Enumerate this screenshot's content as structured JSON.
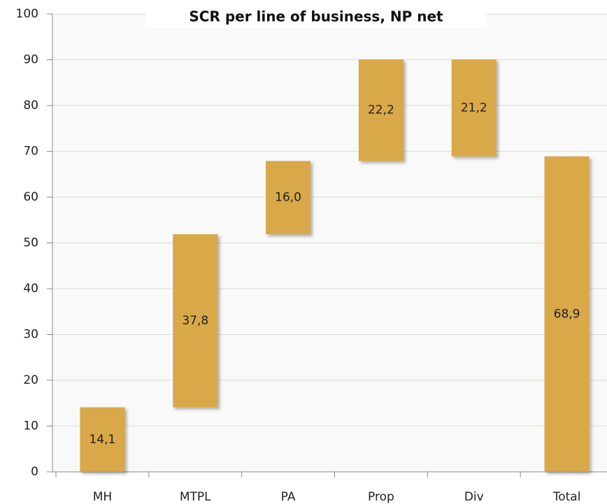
{
  "chart_data": {
    "type": "waterfall",
    "title": "SCR per line of business, NP net",
    "categories": [
      "MH",
      "MTPL",
      "PA",
      "Prop",
      "Div",
      "Total"
    ],
    "values": [
      14.1,
      37.8,
      16.0,
      22.2,
      -21.2,
      68.9
    ],
    "value_labels": [
      "14,1",
      "37,8",
      "16,0",
      "22,2",
      "21,2",
      "68,9"
    ],
    "measures": [
      "relative",
      "relative",
      "relative",
      "relative",
      "relative",
      "total"
    ],
    "color": "#d9a84a",
    "ylim": [
      0,
      100
    ],
    "yticks": [
      0,
      10,
      20,
      30,
      40,
      50,
      60,
      70,
      80,
      90,
      100
    ],
    "grid": true
  }
}
